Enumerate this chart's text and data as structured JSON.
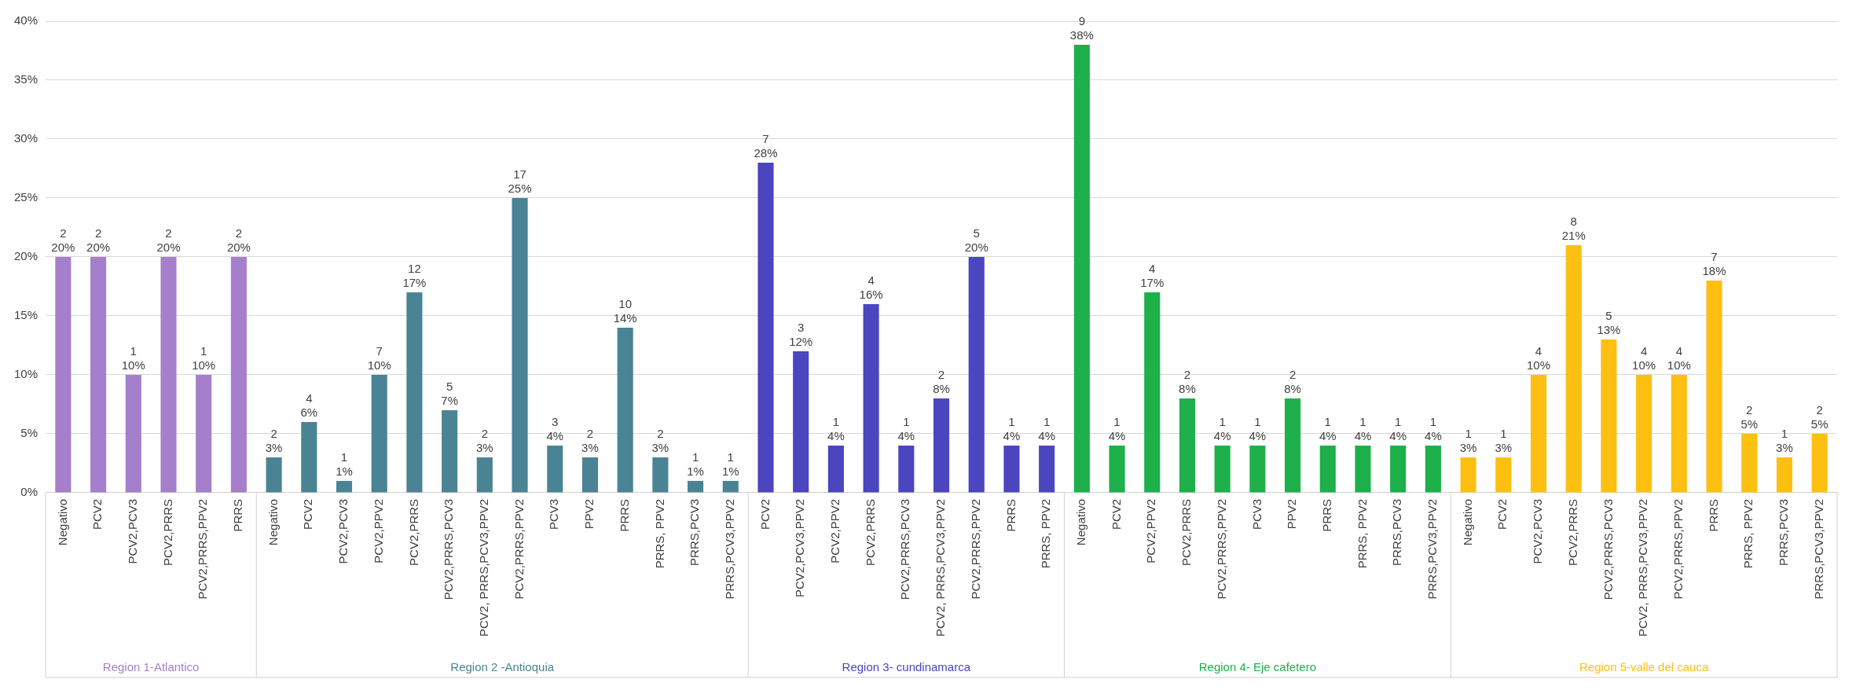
{
  "chart_data": {
    "type": "bar",
    "categories": [
      "Negativo",
      "PCV2",
      "PCV2,PCV3",
      "PCV2,PRRS",
      "PCV2,PRRS,PPV2",
      "PRRS",
      "Negativo",
      "PCV2",
      "PCV2,PCV3",
      "PCV2,PPV2",
      "PCV2,PRRS",
      "PCV2,PRRS,PCV3",
      "PCV2, PRRS,PCV3,PPV2",
      "PCV2,PRRS,PPV2",
      "PCV3",
      "PPV2",
      "PRRS",
      "PRRS, PPV2",
      "PRRS,PCV3",
      "PRRS,PCV3,PPV2",
      "PCV2",
      "PCV2,PCV3,PPV2",
      "PCV2,PPV2",
      "PCV2,PRRS",
      "PCV2,PRRS,PCV3",
      "PCV2, PRRS,PCV3,PPV2",
      "PCV2,PRRS,PPV2",
      "PRRS",
      "PRRS, PPV2",
      "Negativo",
      "PCV2",
      "PCV2,PPV2",
      "PCV2,PRRS",
      "PCV2,PRRS,PPV2",
      "PCV3",
      "PPV2",
      "PRRS",
      "PRRS, PPV2",
      "PRRS,PCV3",
      "PRRS,PCV3,PPV2",
      "Negativo",
      "PCV2",
      "PCV2,PCV3",
      "PCV2,PRRS",
      "PCV2,PRRS,PCV3",
      "PCV2, PRRS,PCV3,PPV2",
      "PCV2,PRRS,PPV2",
      "PRRS",
      "PRRS, PPV2",
      "PRRS,PCV3",
      "PRRS,PCV3,PPV2"
    ],
    "series": [
      {
        "name": "Region 1-Atlantico",
        "color": "#a67fcc",
        "values": [
          20,
          20,
          10,
          20,
          10,
          20,
          null,
          null,
          null,
          null,
          null,
          null,
          null,
          null,
          null,
          null,
          null,
          null,
          null,
          null,
          null,
          null,
          null,
          null,
          null,
          null,
          null,
          null,
          null,
          null,
          null,
          null,
          null,
          null,
          null,
          null,
          null,
          null,
          null,
          null,
          null,
          null,
          null,
          null,
          null,
          null,
          null,
          null,
          null,
          null,
          null
        ],
        "value_labels": [
          "2\n20%",
          "2\n20%",
          "1\n10%",
          "2\n20%",
          "1\n10%",
          "2\n20%",
          null,
          null,
          null,
          null,
          null,
          null,
          null,
          null,
          null,
          null,
          null,
          null,
          null,
          null,
          null,
          null,
          null,
          null,
          null,
          null,
          null,
          null,
          null,
          null,
          null,
          null,
          null,
          null,
          null,
          null,
          null,
          null,
          null,
          null,
          null,
          null,
          null,
          null,
          null,
          null,
          null,
          null,
          null,
          null,
          null
        ]
      },
      {
        "name": "Region 2 -Antioquia",
        "color": "#4a8494",
        "values": [
          null,
          null,
          null,
          null,
          null,
          null,
          3,
          6,
          1,
          10,
          17,
          7,
          3,
          25,
          4,
          3,
          14,
          3,
          1,
          1,
          null,
          null,
          null,
          null,
          null,
          null,
          null,
          null,
          null,
          null,
          null,
          null,
          null,
          null,
          null,
          null,
          null,
          null,
          null,
          null,
          null,
          null,
          null,
          null,
          null,
          null,
          null,
          null,
          null,
          null,
          null
        ],
        "value_labels": [
          null,
          null,
          null,
          null,
          null,
          null,
          "2\n3%",
          "4\n6%",
          "1\n1%",
          "7\n10%",
          "12\n17%",
          "5\n7%",
          "2\n3%",
          "17\n25%",
          "3\n4%",
          "2\n3%",
          "10\n14%",
          "2\n3%",
          "1\n1%",
          "1\n1%",
          null,
          null,
          null,
          null,
          null,
          null,
          null,
          null,
          null,
          null,
          null,
          null,
          null,
          null,
          null,
          null,
          null,
          null,
          null,
          null,
          null,
          null,
          null,
          null,
          null,
          null,
          null,
          null,
          null,
          null,
          null
        ]
      },
      {
        "name": "Region 3- cundinamarca",
        "color": "#4b45c0",
        "values": [
          null,
          null,
          null,
          null,
          null,
          null,
          null,
          null,
          null,
          null,
          null,
          null,
          null,
          null,
          null,
          null,
          null,
          null,
          null,
          null,
          28,
          12,
          4,
          16,
          4,
          8,
          20,
          4,
          4,
          null,
          null,
          null,
          null,
          null,
          null,
          null,
          null,
          null,
          null,
          null,
          null,
          null,
          null,
          null,
          null,
          null,
          null,
          null,
          null,
          null,
          null
        ],
        "value_labels": [
          null,
          null,
          null,
          null,
          null,
          null,
          null,
          null,
          null,
          null,
          null,
          null,
          null,
          null,
          null,
          null,
          null,
          null,
          null,
          null,
          "7\n28%",
          "3\n12%",
          "1\n4%",
          "4\n16%",
          "1\n4%",
          "2\n8%",
          "5\n20%",
          "1\n4%",
          "1\n4%",
          null,
          null,
          null,
          null,
          null,
          null,
          null,
          null,
          null,
          null,
          null,
          null,
          null,
          null,
          null,
          null,
          null,
          null,
          null,
          null,
          null,
          null
        ]
      },
      {
        "name": "Region 4- Eje cafetero",
        "color": "#1db04b",
        "values": [
          null,
          null,
          null,
          null,
          null,
          null,
          null,
          null,
          null,
          null,
          null,
          null,
          null,
          null,
          null,
          null,
          null,
          null,
          null,
          null,
          null,
          null,
          null,
          null,
          null,
          null,
          null,
          null,
          null,
          38,
          4,
          17,
          8,
          4,
          4,
          8,
          4,
          4,
          4,
          4,
          null,
          null,
          null,
          null,
          null,
          null,
          null,
          null,
          null,
          null,
          null
        ],
        "value_labels": [
          null,
          null,
          null,
          null,
          null,
          null,
          null,
          null,
          null,
          null,
          null,
          null,
          null,
          null,
          null,
          null,
          null,
          null,
          null,
          null,
          null,
          null,
          null,
          null,
          null,
          null,
          null,
          null,
          null,
          "9\n38%",
          "1\n4%",
          "4\n17%",
          "2\n8%",
          "1\n4%",
          "1\n4%",
          "2\n8%",
          "1\n4%",
          "1\n4%",
          "1\n4%",
          "1\n4%",
          null,
          null,
          null,
          null,
          null,
          null,
          null,
          null,
          null,
          null,
          null
        ]
      },
      {
        "name": "Region 5-valle del cauca",
        "color": "#fdc012",
        "values": [
          null,
          null,
          null,
          null,
          null,
          null,
          null,
          null,
          null,
          null,
          null,
          null,
          null,
          null,
          null,
          null,
          null,
          null,
          null,
          null,
          null,
          null,
          null,
          null,
          null,
          null,
          null,
          null,
          null,
          null,
          null,
          null,
          null,
          null,
          null,
          null,
          null,
          null,
          null,
          null,
          3,
          3,
          10,
          21,
          13,
          10,
          10,
          18,
          5,
          3,
          5
        ],
        "value_labels": [
          null,
          null,
          null,
          null,
          null,
          null,
          null,
          null,
          null,
          null,
          null,
          null,
          null,
          null,
          null,
          null,
          null,
          null,
          null,
          null,
          null,
          null,
          null,
          null,
          null,
          null,
          null,
          null,
          null,
          null,
          null,
          null,
          null,
          null,
          null,
          null,
          null,
          null,
          null,
          null,
          "1\n3%",
          "1\n3%",
          "4\n10%",
          "8\n21%",
          "5\n13%",
          "4\n10%",
          "4\n10%",
          "7\n18%",
          "2\n5%",
          "1\n3%",
          "2\n5%"
        ]
      }
    ],
    "ylim": [
      0,
      40
    ],
    "yticks": [
      {
        "value": 0,
        "label": "0%"
      },
      {
        "value": 5,
        "label": "5%"
      },
      {
        "value": 10,
        "label": "10%"
      },
      {
        "value": 15,
        "label": "15%"
      },
      {
        "value": 20,
        "label": "20%"
      },
      {
        "value": 25,
        "label": "25%"
      },
      {
        "value": 30,
        "label": "30%"
      },
      {
        "value": 35,
        "label": "35%"
      },
      {
        "value": 40,
        "label": "40%"
      }
    ],
    "grid": "y",
    "legend": false
  }
}
